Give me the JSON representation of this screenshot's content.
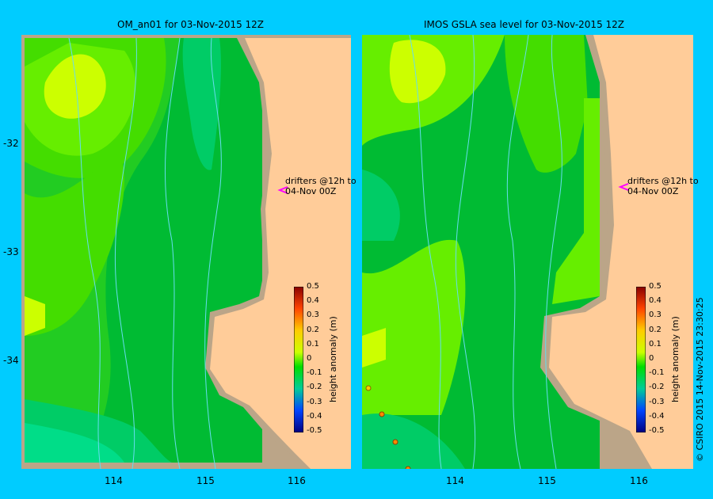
{
  "panels": [
    {
      "title": "OM_an01  for 03-Nov-2015 12Z"
    },
    {
      "title": "IMOS GSLA sea level  for 03-Nov-2015 12Z"
    }
  ],
  "axes": {
    "lon_ticks": [
      "114",
      "115",
      "116"
    ],
    "lat_ticks": [
      "-32",
      "-33",
      "-34"
    ]
  },
  "colorbar": {
    "label": "height anomaly (m)",
    "ticks": [
      "0.5",
      "0.4",
      "0.3",
      "0.2",
      "0.1",
      "0",
      "-0.1",
      "-0.2",
      "-0.3",
      "-0.4",
      "-0.5"
    ],
    "colors": [
      "#ff4400",
      "#ff8800",
      "#ffcc00",
      "#ccff00",
      "#66ff00",
      "#00dd00",
      "#00cc66",
      "#0088cc",
      "#0044ff",
      "#0000cc",
      "#000080"
    ]
  },
  "annotation": {
    "line1": "drifters @12h to",
    "line2": "04-Nov 00Z"
  },
  "copyright": "© CSIRO 2015   14-Nov-2015 23:30:25",
  "colors": {
    "background": "#00ccff",
    "land": "#ffcc99",
    "shelf": "#bba588",
    "contour": "#66ddee",
    "drifter": "#ff00ff"
  }
}
